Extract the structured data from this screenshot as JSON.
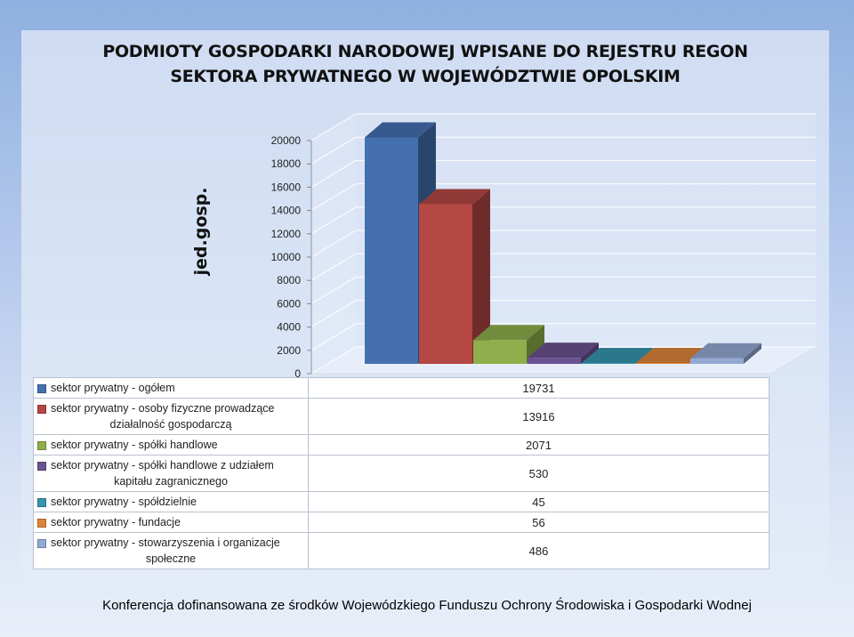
{
  "chart_data": {
    "type": "bar",
    "title": [
      "PODMIOTY GOSPODARKI NARODOWEJ WPISANE DO REJESTRU REGON",
      "SEKTORA PRYWATNEGO W WOJEWÓDZTWIE OPOLSKIM"
    ],
    "ylabel": "jed.gosp.",
    "xlabel": "",
    "ylim": [
      0,
      20000
    ],
    "yticks": [
      "0",
      "2000",
      "4000",
      "6000",
      "8000",
      "10000",
      "12000",
      "14000",
      "16000",
      "18000",
      "20000"
    ],
    "grid": true,
    "legend": "table-below",
    "series": [
      {
        "name": [
          "sektor prywatny - ogółem"
        ],
        "value": 19731,
        "value_label": "19731",
        "color": "#4470b0"
      },
      {
        "name": [
          "sektor prywatny - osoby fizyczne prowadzące",
          "działalność gospodarczą"
        ],
        "value": 13916,
        "value_label": "13916",
        "color": "#b54744"
      },
      {
        "name": [
          "sektor prywatny - spółki handlowe"
        ],
        "value": 2071,
        "value_label": "2071",
        "color": "#8faf4c"
      },
      {
        "name": [
          "sektor prywatny - spółki handlowe z udziałem",
          "kapitału zagranicznego"
        ],
        "value": 530,
        "value_label": "530",
        "color": "#6b5290"
      },
      {
        "name": [
          "sektor prywatny - spółdzielnie"
        ],
        "value": 45,
        "value_label": "45",
        "color": "#3696ae"
      },
      {
        "name": [
          "sektor prywatny - fundacje"
        ],
        "value": 56,
        "value_label": "56",
        "color": "#e0843a"
      },
      {
        "name": [
          "sektor prywatny - stowarzyszenia i organizacje",
          "społeczne"
        ],
        "value": 486,
        "value_label": "486",
        "color": "#93a9d3"
      }
    ]
  },
  "footer": "Konferencja dofinansowana ze środków Wojewódzkiego Funduszu Ochrony Środowiska i Gospodarki Wodnej"
}
